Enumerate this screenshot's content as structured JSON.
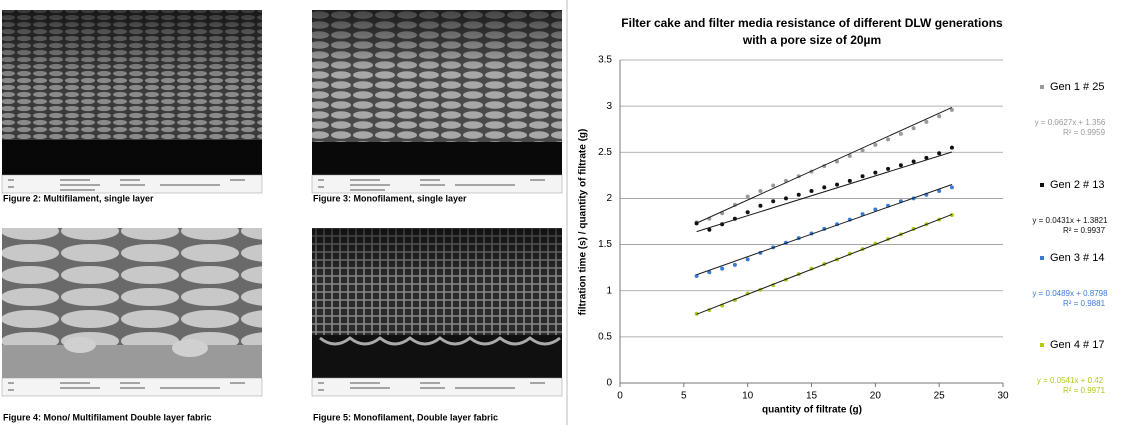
{
  "figures": [
    {
      "caption": "Figure 2: Multifilament, single layer"
    },
    {
      "caption": "Figure 3: Monofilament, single layer"
    },
    {
      "caption": "Figure 4: Mono/ Multifilament Double layer fabric"
    },
    {
      "caption": "Figure 5: Monofilament, Double layer fabric"
    }
  ],
  "chart_data": {
    "type": "scatter",
    "title": [
      "Filter cake and filter media resistance of different DLW generations",
      "with a pore size of 20µm"
    ],
    "x_label": "quantity of filtrate  (g)",
    "y_label": "filtration time (s) / quantity of filtrate (g)",
    "xlim": [
      0,
      30
    ],
    "xticks": [
      0,
      5,
      10,
      15,
      20,
      25,
      30
    ],
    "ylim": [
      0,
      3.5
    ],
    "yticks": [
      0,
      0.5,
      1,
      1.5,
      2,
      2.5,
      3,
      3.5
    ],
    "grid": true,
    "legend": "right",
    "trendline_color": "#1a1a1a",
    "x": [
      6,
      7,
      8,
      9,
      10,
      11,
      12,
      13,
      14,
      15,
      16,
      17,
      18,
      19,
      20,
      21,
      22,
      23,
      24,
      25,
      26
    ],
    "series": [
      {
        "name": "Gen 1 # 25",
        "color": "#9a9a9a",
        "slope": 0.0627,
        "intercept": 1.356,
        "equation": "y = 0.0627x + 1.356",
        "r2": "R² = 0.9959",
        "values": [
          1.74,
          1.78,
          1.84,
          1.93,
          2.02,
          2.08,
          2.14,
          2.19,
          2.24,
          2.29,
          2.35,
          2.4,
          2.46,
          2.52,
          2.58,
          2.64,
          2.7,
          2.76,
          2.83,
          2.89,
          2.96
        ]
      },
      {
        "name": "Gen 2 # 13",
        "color": "#111111",
        "slope": 0.0431,
        "intercept": 1.3821,
        "equation": "y = 0.0431x + 1.3821",
        "r2": "R² = 0.9937",
        "values": [
          1.73,
          1.66,
          1.72,
          1.78,
          1.85,
          1.92,
          1.97,
          2.0,
          2.04,
          2.08,
          2.12,
          2.15,
          2.19,
          2.24,
          2.28,
          2.32,
          2.36,
          2.4,
          2.44,
          2.49,
          2.55
        ]
      },
      {
        "name": "Gen 3 # 14",
        "color": "#3b7bd6",
        "slope": 0.0489,
        "intercept": 0.8798,
        "equation": "y = 0.0489x + 0.8798",
        "r2": "R² = 0.9881",
        "values": [
          1.16,
          1.2,
          1.24,
          1.28,
          1.34,
          1.41,
          1.47,
          1.52,
          1.57,
          1.62,
          1.67,
          1.72,
          1.77,
          1.83,
          1.88,
          1.92,
          1.97,
          2.0,
          2.04,
          2.08,
          2.12
        ]
      },
      {
        "name": "Gen 4 # 17",
        "color": "#b3c91a",
        "slope": 0.0541,
        "intercept": 0.42,
        "equation": "y = 0.0541x + 0.42",
        "r2": "R² = 0.9971",
        "values": [
          0.75,
          0.79,
          0.84,
          0.9,
          0.97,
          1.01,
          1.06,
          1.12,
          1.18,
          1.24,
          1.29,
          1.34,
          1.4,
          1.45,
          1.51,
          1.56,
          1.61,
          1.67,
          1.72,
          1.77,
          1.82
        ]
      }
    ]
  }
}
